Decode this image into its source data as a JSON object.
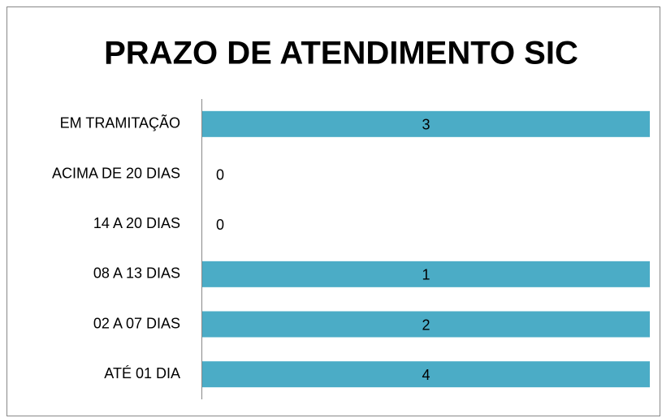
{
  "chart_data": {
    "type": "bar",
    "orientation": "horizontal",
    "stacked": "percent",
    "title": "PRAZO DE ATENDIMENTO SIC",
    "categories": [
      "EM TRAMITAÇÃO",
      "ACIMA DE 20 DIAS",
      "14 A 20 DIAS",
      "08 A 13 DIAS",
      "02 A 07 DIAS",
      "ATÉ 01 DIA"
    ],
    "values": [
      3,
      0,
      0,
      1,
      2,
      4
    ],
    "color": "#4bacc6",
    "grid": false
  }
}
